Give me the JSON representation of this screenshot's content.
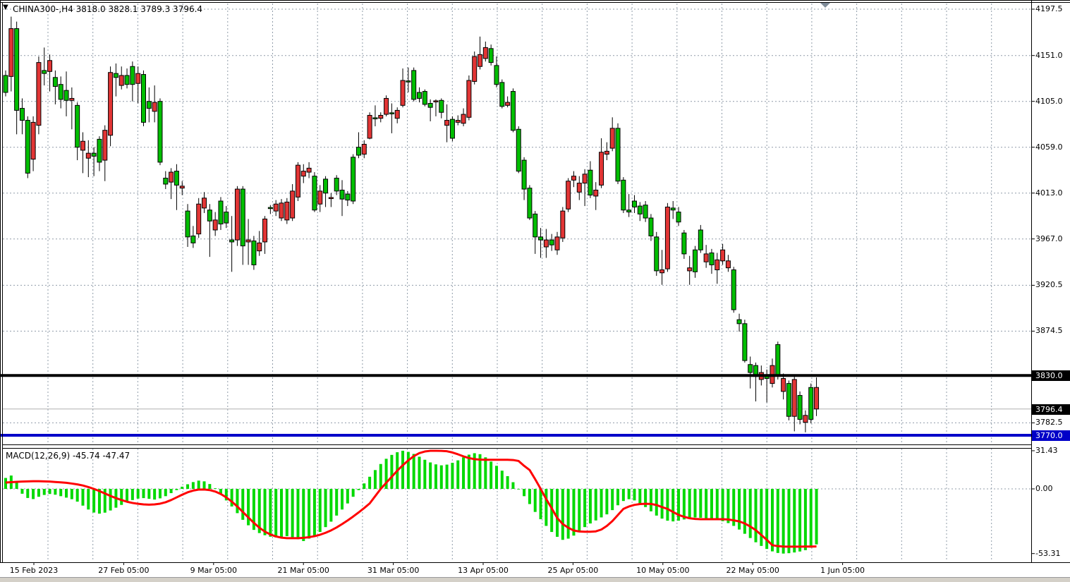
{
  "header": {
    "dropdown_icon": "down-triangle",
    "title": "CHINA300-,H4  3818.0 3828.1 3789.3 3796.4",
    "symbol": "CHINA300-",
    "timeframe": "H4"
  },
  "colors": {
    "background": "#FFFFFF",
    "bull": "#00BE00",
    "bear": "#E23535",
    "outline": "#000000",
    "grid": "#909CA9",
    "macd_histogram": "#00D900",
    "macd_signal": "#FF0202",
    "hline_black": "#000000",
    "hline_blue": "#0000C8",
    "bid_line": "#B0B0B0",
    "badge_black_bg": "#000000",
    "badge_blue_bg": "#0000C8",
    "badge_text": "#FFFFFF",
    "axis_text": "#000000",
    "bottom_strip": "#D4D0C8",
    "shift_marker": "#7F8C99"
  },
  "price_axis": {
    "tick_labels": [
      "4197.5",
      "4151.0",
      "4105.0",
      "4059.0",
      "4013.0",
      "3967.0",
      "3920.5",
      "3874.5",
      "3782.5"
    ],
    "tick_values": [
      4197.5,
      4151.0,
      4105.0,
      4059.0,
      4013.0,
      3967.0,
      3920.5,
      3874.5,
      3782.5
    ]
  },
  "badges": [
    {
      "label": "3830.0",
      "value": 3830.0,
      "bg": "badge_black_bg"
    },
    {
      "label": "3796.4",
      "value": 3796.4,
      "bg": "badge_black_bg"
    },
    {
      "label": "3770.0",
      "value": 3770.0,
      "bg": "badge_blue_bg"
    }
  ],
  "time_axis": {
    "labels": [
      "15 Feb 2023",
      "27 Feb 05:00",
      "9 Mar 05:00",
      "21 Mar 05:00",
      "31 Mar 05:00",
      "13 Apr 05:00",
      "25 Apr 05:00",
      "10 May 05:00",
      "22 May 05:00",
      "1 Jun 05:00"
    ]
  },
  "macd_panel": {
    "label": "MACD(12,26,9) -45.74 -47.47",
    "tick_labels": [
      "31.43",
      "0.00",
      "-53.31"
    ],
    "tick_values": [
      31.43,
      0,
      -53.31
    ]
  },
  "chart_data": {
    "type": "candlestick_with_macd",
    "title": "CHINA300-,H4",
    "symbol": "CHINA300-",
    "timeframe": "H4",
    "current_bar": {
      "open": 3818.0,
      "high": 3828.1,
      "low": 3789.3,
      "close": 3796.4
    },
    "price_ylim": [
      3757,
      4203
    ],
    "price_ticks": [
      4197.5,
      4151.0,
      4105.0,
      4059.0,
      4013.0,
      3967.0,
      3920.5,
      3874.5,
      3782.5
    ],
    "x_tick_labels": [
      "15 Feb 2023",
      "27 Feb 05:00",
      "9 Mar 05:00",
      "21 Mar 05:00",
      "31 Mar 05:00",
      "13 Apr 05:00",
      "25 Apr 05:00",
      "10 May 05:00",
      "22 May 05:00",
      "1 Jun 05:00"
    ],
    "horizontal_lines": [
      {
        "price": 3830.0,
        "color": "black"
      },
      {
        "price": 3770.0,
        "color": "blue"
      }
    ],
    "bid_price": 3796.4,
    "candles": {
      "open": [
        4114,
        4178,
        4096,
        4086,
        4033,
        4084,
        4144,
        4133,
        4146,
        4120,
        4107,
        4106,
        4108,
        4059,
        4065,
        4053,
        4050,
        4044,
        4076,
        4134,
        4129,
        4131,
        4122,
        4122,
        4133,
        4084,
        4098,
        4104,
        4044,
        4022,
        4034,
        4021,
        4020,
        3969,
        3963,
        4002,
        4008,
        3985,
        3986,
        3982,
        3983,
        3964,
        4017,
        3960,
        3966,
        3941,
        3963,
        3987,
        3997,
        4002,
        4003,
        4004,
        4015,
        4041,
        4035,
        4038,
        3996,
        4015,
        4013,
        4008,
        4015,
        4007,
        4006,
        4005,
        4051,
        4062,
        4091,
        4087,
        4091,
        4108,
        4092,
        4096,
        4126,
        4125,
        4107,
        4108,
        4102,
        4099,
        4105,
        4094,
        4086,
        4068,
        4086,
        4092,
        4126,
        4150,
        4152,
        4159,
        4144,
        4122,
        4100,
        4104,
        4076,
        4035,
        4017,
        3988,
        3969,
        3966,
        3966,
        3961,
        3969,
        3995,
        4025,
        4030,
        4023,
        4032,
        4011,
        4016,
        4054,
        4055,
        4078,
        4025,
        3996,
        3994,
        3999,
        3992,
        3988,
        3970,
        3935,
        3936,
        3999,
        3996,
        3984,
        3952,
        3938,
        3934,
        3956,
        3952,
        3941,
        3946,
        3956,
        3945,
        3896,
        3882,
        3845,
        3833,
        3829,
        3833,
        3827,
        3840,
        3830,
        3827,
        3789,
        3826,
        3786,
        3790,
        3786,
        3818
      ],
      "high": [
        4136,
        4190,
        4185,
        4108,
        4090,
        4090,
        4150,
        4159,
        4152,
        4136,
        4130,
        4135,
        4119,
        4104,
        4074,
        4066,
        4059,
        4070,
        4081,
        4140,
        4143,
        4140,
        4138,
        4145,
        4140,
        4136,
        4119,
        4121,
        4108,
        4035,
        4038,
        4042,
        4025,
        4002,
        3980,
        4008,
        4014,
        4002,
        3994,
        4009,
        4000,
        3990,
        4020,
        4020,
        3987,
        3970,
        3975,
        3990,
        4001,
        4006,
        4007,
        4008,
        4022,
        4044,
        4042,
        4044,
        4034,
        4021,
        4030,
        4013,
        4031,
        4026,
        4015,
        4052,
        4074,
        4066,
        4094,
        4101,
        4094,
        4111,
        4103,
        4099,
        4138,
        4139,
        4139,
        4119,
        4117,
        4107,
        4107,
        4108,
        4102,
        4090,
        4091,
        4098,
        4131,
        4155,
        4170,
        4165,
        4162,
        4150,
        4127,
        4110,
        4118,
        4080,
        4049,
        4021,
        3995,
        3978,
        3977,
        3972,
        3974,
        3999,
        4028,
        4035,
        4030,
        4037,
        4045,
        4024,
        4068,
        4064,
        4089,
        4083,
        4029,
        4012,
        4011,
        4004,
        4005,
        3992,
        3974,
        3956,
        4003,
        4005,
        3999,
        3976,
        3950,
        3960,
        3981,
        3961,
        3957,
        3953,
        3962,
        3951,
        3939,
        3892,
        3886,
        3849,
        3843,
        3840,
        3836,
        3847,
        3864,
        3832,
        3825,
        3829,
        3814,
        3795,
        3822,
        3828.1
      ],
      "low": [
        4110,
        4115,
        4072,
        4072,
        4028,
        4035,
        4072,
        4121,
        4115,
        4102,
        4098,
        4090,
        4077,
        4046,
        4033,
        4029,
        4030,
        4035,
        4025,
        4060,
        4110,
        4117,
        4118,
        4105,
        4103,
        4080,
        4084,
        4084,
        4041,
        4017,
        4007,
        3996,
        4011,
        3959,
        3958,
        3968,
        3993,
        3949,
        3970,
        3976,
        3978,
        3934,
        3960,
        3941,
        3941,
        3936,
        3950,
        3952,
        3992,
        3990,
        3985,
        3982,
        3985,
        4005,
        4023,
        4028,
        3994,
        3994,
        3999,
        3999,
        4011,
        3990,
        4000,
        4002,
        4048,
        4048,
        4067,
        4080,
        4084,
        4090,
        4073,
        4083,
        4099,
        4114,
        4105,
        4104,
        4100,
        4085,
        4090,
        4088,
        4064,
        4065,
        4081,
        4080,
        4086,
        4122,
        4137,
        4145,
        4141,
        4119,
        4098,
        4099,
        4074,
        4033,
        4006,
        3986,
        3952,
        3948,
        3948,
        3955,
        3951,
        3964,
        3994,
        4019,
        4006,
        4000,
        4008,
        3996,
        4018,
        4046,
        4055,
        4022,
        3993,
        3989,
        3993,
        3985,
        3984,
        3965,
        3930,
        3921,
        3934,
        3987,
        3980,
        3947,
        3921,
        3928,
        3953,
        3938,
        3932,
        3922,
        3941,
        3934,
        3893,
        3874,
        3843,
        3817,
        3804,
        3820,
        3803,
        3818,
        3826,
        3806,
        3785,
        3774,
        3781,
        3773,
        3782,
        3789.3
      ],
      "close": [
        4131,
        4130,
        4178,
        4098,
        4086,
        4047,
        4081,
        4136,
        4135,
        4129,
        4122,
        4116,
        4106,
        4101,
        4056,
        4048,
        4053,
        4067,
        4046,
        4071,
        4133,
        4121,
        4131,
        4140,
        4123,
        4132,
        4105,
        4095,
        4105,
        4028,
        4024,
        4035,
        4018,
        3995,
        3970,
        3972,
        3998,
        3996,
        3976,
        4005,
        3994,
        3966,
        3966,
        4017,
        3964,
        3965,
        3955,
        3964,
        3998,
        3995,
        3988,
        3986,
        3988,
        4009,
        4030,
        4034,
        4030,
        4002,
        4027,
        4007,
        4028,
        4016,
        4012,
        4049,
        4059,
        4052,
        4068,
        4088,
        4088,
        4092,
        4093,
        4088,
        4101,
        4125,
        4136,
        4114,
        4115,
        4103,
        4104,
        4106,
        4081,
        4087,
        4084,
        4083,
        4089,
        4125,
        4140,
        4148,
        4158,
        4141,
        4124,
        4101,
        4115,
        4077,
        4046,
        4018,
        3992,
        3969,
        3959,
        3966,
        3956,
        3968,
        3997,
        4026,
        4014,
        4023,
        4036,
        4010,
        4021,
        4052,
        4058,
        4078,
        4026,
        3996,
        4005,
        4000,
        4001,
        3988,
        3969,
        3933,
        3937,
        3998,
        3994,
        3973,
        3935,
        3956,
        3976,
        3944,
        3953,
        3936,
        3945,
        3938,
        3936,
        3886,
        3882,
        3841,
        3840,
        3826,
        3830,
        3822,
        3861,
        3814,
        3822,
        3789,
        3810,
        3783,
        3818,
        3796.4
      ]
    },
    "macd": {
      "params": "12,26,9",
      "current_macd": -45.74,
      "current_signal": -47.47,
      "ylim": [
        -53.31,
        31.43
      ],
      "histogram": [
        9,
        11,
        6,
        -4,
        -7.5,
        -8.4,
        -6.5,
        -5,
        -4.2,
        -4.8,
        -6,
        -7.2,
        -8.5,
        -10.5,
        -13.8,
        -17,
        -19.5,
        -20.4,
        -19.6,
        -17.8,
        -15.5,
        -13.2,
        -11,
        -9.2,
        -8,
        -7.6,
        -8.2,
        -8.8,
        -7.8,
        -6,
        -3.5,
        -1,
        1.8,
        3.8,
        5.6,
        6.8,
        6.2,
        4,
        0.5,
        -4,
        -9.5,
        -14.5,
        -20,
        -25.5,
        -30,
        -33.8,
        -36.4,
        -38.2,
        -39.4,
        -40,
        -39.6,
        -39,
        -39.8,
        -41.5,
        -43,
        -41,
        -38.5,
        -35.5,
        -31.5,
        -27,
        -22,
        -17,
        -12,
        -6.5,
        -1,
        4.5,
        10,
        15.5,
        20.5,
        24.8,
        28,
        30.2,
        31.43,
        30.5,
        28.8,
        26.5,
        24,
        21.8,
        20.2,
        19.4,
        20,
        21.5,
        23.5,
        26,
        28.2,
        29.4,
        28.6,
        26,
        22.5,
        19,
        15,
        10.5,
        5.5,
        0,
        -6,
        -12.5,
        -19,
        -25,
        -30.5,
        -35.5,
        -39.5,
        -42,
        -41,
        -38.5,
        -35,
        -31.5,
        -28.5,
        -26,
        -23.5,
        -21,
        -17.5,
        -13.5,
        -10,
        -8.5,
        -9.5,
        -12,
        -15,
        -18.5,
        -22,
        -24.5,
        -26.2,
        -26.8,
        -26.2,
        -25.2,
        -24.2,
        -23.6,
        -23.8,
        -24.4,
        -25,
        -25.6,
        -26.6,
        -28.2,
        -30.5,
        -33.5,
        -37,
        -40.5,
        -44,
        -47,
        -49.5,
        -51.5,
        -52.8,
        -53.31,
        -53,
        -52.4,
        -51.6,
        -50.5,
        -48.5,
        -45.74
      ],
      "signal": [
        5.2,
        5.5,
        5.8,
        6.0,
        6.2,
        6.3,
        6.3,
        6.2,
        6.0,
        5.7,
        5.4,
        5.0,
        4.4,
        3.7,
        2.8,
        1.5,
        0,
        -1.8,
        -3.8,
        -5.8,
        -7.6,
        -9.2,
        -10.6,
        -11.6,
        -12.3,
        -12.8,
        -13.0,
        -12.8,
        -12.2,
        -11.0,
        -9.2,
        -7.0,
        -4.8,
        -2.8,
        -1.4,
        -0.6,
        -0.5,
        -1.0,
        -2.2,
        -4.2,
        -7.0,
        -10.5,
        -14.5,
        -19.0,
        -23.5,
        -28.0,
        -32.0,
        -35.2,
        -37.6,
        -39.2,
        -40.2,
        -40.6,
        -40.6,
        -40.6,
        -40.3,
        -39.8,
        -39.0,
        -37.8,
        -36.2,
        -34.2,
        -31.8,
        -29.0,
        -26.0,
        -22.8,
        -19.4,
        -15.8,
        -12.0,
        -6.0,
        0,
        5.0,
        10.0,
        15.0,
        19.5,
        23.5,
        27.0,
        29.5,
        30.8,
        31.4,
        31.4,
        31.3,
        31.0,
        30.0,
        28.5,
        26.8,
        25.4,
        24.5,
        24.1,
        24.0,
        24.0,
        24.0,
        24.0,
        24.0,
        23.8,
        23.0,
        19.0,
        15.5,
        8.0,
        0,
        -8.4,
        -16.0,
        -24.0,
        -29.0,
        -32.0,
        -34.3,
        -35.1,
        -35.3,
        -35.3,
        -35.0,
        -33.5,
        -30.5,
        -26.5,
        -21.5,
        -16.5,
        -14.5,
        -13.2,
        -12.5,
        -12.3,
        -12.4,
        -13.3,
        -15.0,
        -16.5,
        -19.0,
        -21.5,
        -23.0,
        -24.2,
        -24.8,
        -25.0,
        -25.0,
        -25.0,
        -25.0,
        -25.0,
        -25.2,
        -25.9,
        -26.8,
        -28.5,
        -31.0,
        -34.0,
        -38.0,
        -42.0,
        -46.4,
        -47.2,
        -47.5,
        -47.6,
        -47.6,
        -47.6,
        -47.55,
        -47.5,
        -47.47
      ]
    }
  }
}
